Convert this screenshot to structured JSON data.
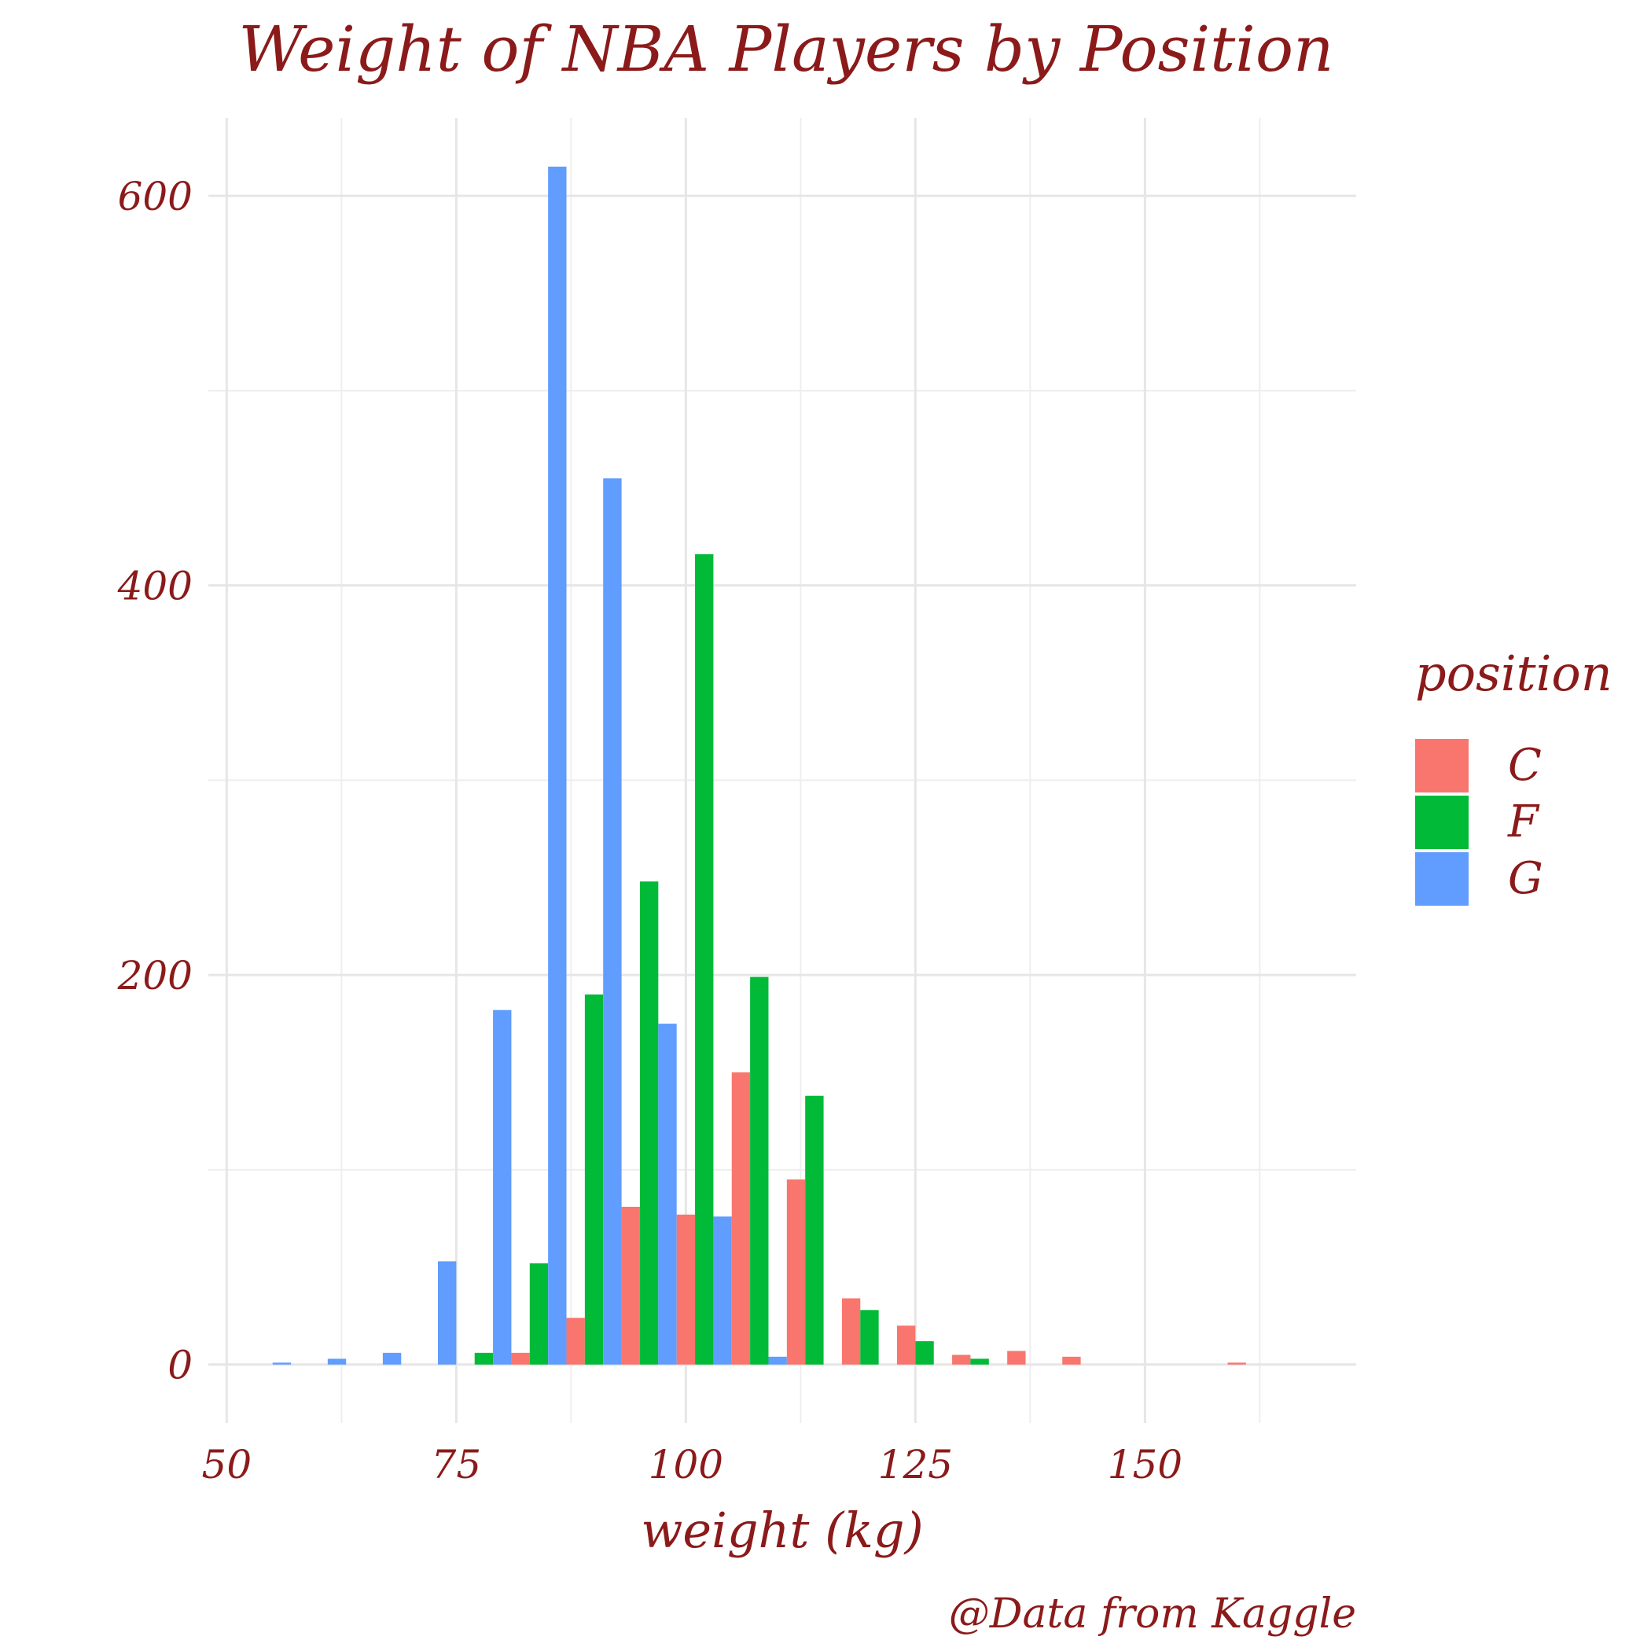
{
  "chart_data": {
    "type": "bar",
    "title": "Weight of NBA Players by Position",
    "xlabel": "weight (kg)",
    "ylabel": "",
    "caption": "@Data from Kaggle",
    "legend_title": "position",
    "legend_position": "right",
    "xlim": [
      48,
      173
    ],
    "ylim": [
      -30,
      640
    ],
    "x_ticks": [
      50,
      75,
      100,
      125,
      150
    ],
    "y_ticks": [
      0,
      200,
      400,
      600
    ],
    "grid": true,
    "bin_width": 6,
    "bins": [
      54,
      60,
      66,
      72,
      78,
      84,
      90,
      96,
      102,
      108,
      114,
      120,
      126,
      132,
      138,
      144,
      150,
      156,
      162
    ],
    "series": [
      {
        "name": "C",
        "color": "#F8766D",
        "values": [
          0,
          0,
          0,
          0,
          0,
          6,
          24,
          81,
          77,
          150,
          95,
          34,
          20,
          5,
          7,
          4,
          0,
          0,
          1
        ]
      },
      {
        "name": "F",
        "color": "#00BA38",
        "values": [
          0,
          0,
          0,
          0,
          6,
          52,
          190,
          248,
          416,
          199,
          138,
          28,
          12,
          3,
          0,
          0,
          0,
          0,
          0
        ]
      },
      {
        "name": "G",
        "color": "#619CFF",
        "values": [
          1,
          3,
          6,
          53,
          182,
          615,
          455,
          175,
          76,
          4,
          0,
          0,
          0,
          0,
          0,
          0,
          0,
          0,
          0
        ]
      }
    ]
  }
}
